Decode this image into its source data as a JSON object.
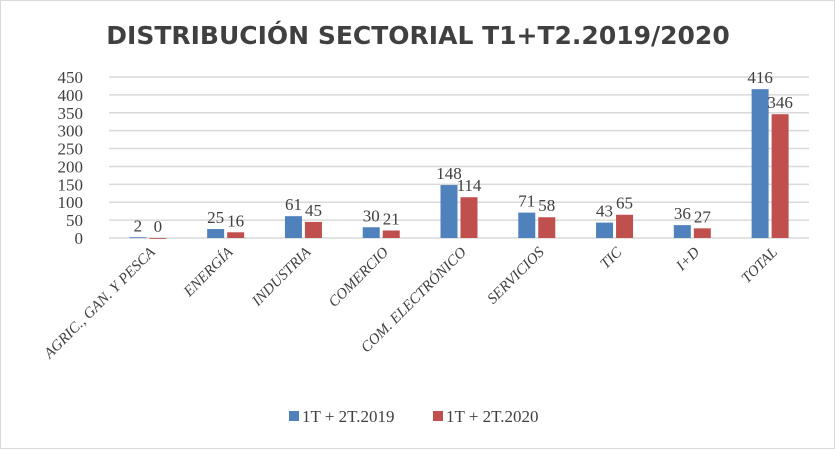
{
  "chart_data": {
    "type": "bar",
    "title": "DISTRIBUCIÓN SECTORIAL T1+T2.2019/2020",
    "xlabel": "",
    "ylabel": "",
    "ylim": [
      0,
      450
    ],
    "yticks": [
      0,
      50,
      100,
      150,
      200,
      250,
      300,
      350,
      400,
      450
    ],
    "grid": true,
    "legend_position": "bottom",
    "categories": [
      "AGRIC., GAN. Y PESCA",
      "ENERGÍA",
      "INDUSTRIA",
      "COMERCIO",
      "COM. ELECTRÓNICO",
      "SERVICIOS",
      "TIC",
      "I+D",
      "TOTAL"
    ],
    "series": [
      {
        "name": "1T + 2T.2019",
        "color": "#4f81bd",
        "values": [
          2,
          25,
          61,
          30,
          148,
          71,
          43,
          36,
          416
        ]
      },
      {
        "name": "1T + 2T.2020",
        "color": "#c0504d",
        "values": [
          0,
          16,
          45,
          21,
          114,
          58,
          65,
          27,
          346
        ]
      }
    ]
  }
}
